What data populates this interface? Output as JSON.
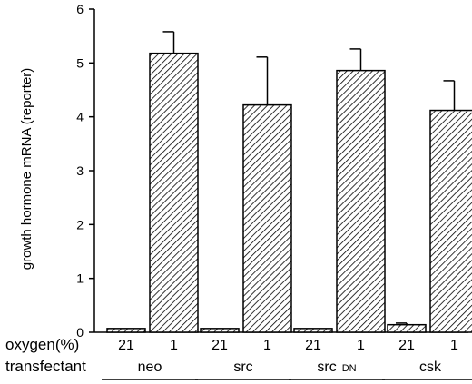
{
  "chart_data": {
    "type": "bar",
    "title": "",
    "ylabel": "growth hormone mRNA (reporter)",
    "ylim": [
      0,
      6
    ],
    "yticks": [
      0,
      1,
      2,
      3,
      4,
      5,
      6
    ],
    "grid": false,
    "row_labels": {
      "oxygen": "oxygen(%)",
      "transfectant": "transfectant"
    },
    "groups": [
      {
        "transfectant": "neo",
        "suffix": "",
        "bars": [
          {
            "oxygen": "21",
            "value": 0.07,
            "error": 0
          },
          {
            "oxygen": "1",
            "value": 5.18,
            "error": 0.4
          }
        ]
      },
      {
        "transfectant": "src",
        "suffix": "",
        "bars": [
          {
            "oxygen": "21",
            "value": 0.07,
            "error": 0
          },
          {
            "oxygen": "1",
            "value": 4.22,
            "error": 0.89
          }
        ]
      },
      {
        "transfectant": "src",
        "suffix": "DN",
        "bars": [
          {
            "oxygen": "21",
            "value": 0.07,
            "error": 0
          },
          {
            "oxygen": "1",
            "value": 4.86,
            "error": 0.4
          }
        ]
      },
      {
        "transfectant": "csk",
        "suffix": "",
        "bars": [
          {
            "oxygen": "21",
            "value": 0.14,
            "error": 0.03
          },
          {
            "oxygen": "1",
            "value": 4.12,
            "error": 0.55
          }
        ]
      }
    ]
  }
}
